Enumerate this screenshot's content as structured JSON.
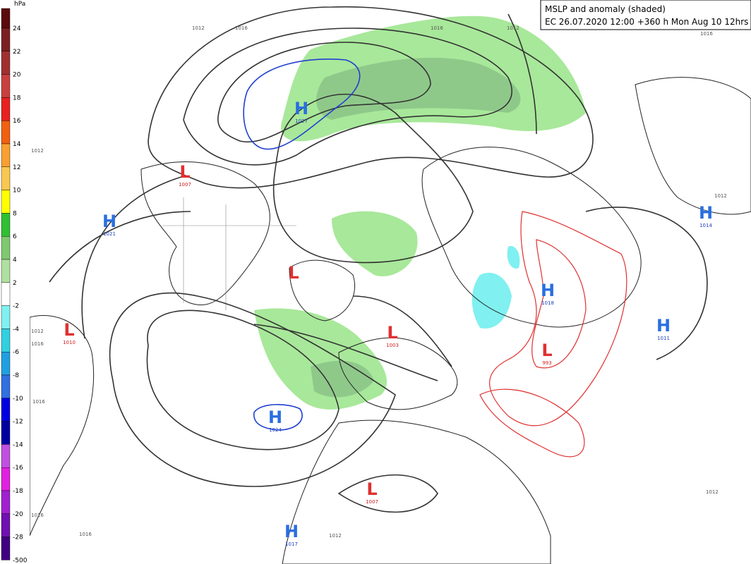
{
  "header": {
    "title": "MSLP and anomaly (shaded)",
    "subtitle": "EC 26.07.2020 12:00 +360 h Mon Aug 10 12hrs"
  },
  "colorbar": {
    "unit": "hPa",
    "levels": [
      {
        "label": "24",
        "color": "#5a0a0a"
      },
      {
        "label": "22",
        "color": "#7a2020"
      },
      {
        "label": "20",
        "color": "#a03030"
      },
      {
        "label": "18",
        "color": "#c84040"
      },
      {
        "label": "16",
        "color": "#e82020"
      },
      {
        "label": "14",
        "color": "#f06010"
      },
      {
        "label": "12",
        "color": "#f8a030"
      },
      {
        "label": "10",
        "color": "#f8c850"
      },
      {
        "label": "8",
        "color": "#ffff00"
      },
      {
        "label": "6",
        "color": "#30c030"
      },
      {
        "label": "4",
        "color": "#80c870"
      },
      {
        "label": "2",
        "color": "#b0e0a0"
      },
      {
        "label": "-2",
        "color": "#ffffff"
      },
      {
        "label": "-4",
        "color": "#80f0f0"
      },
      {
        "label": "-6",
        "color": "#30d0e0"
      },
      {
        "label": "-8",
        "color": "#20a0e0"
      },
      {
        "label": "-10",
        "color": "#3070e0"
      },
      {
        "label": "-12",
        "color": "#0000e0"
      },
      {
        "label": "-14",
        "color": "#0000a0"
      },
      {
        "label": "-16",
        "color": "#c050e0"
      },
      {
        "label": "-18",
        "color": "#e020e0"
      },
      {
        "label": "-20",
        "color": "#a020d0"
      },
      {
        "label": "-28",
        "color": "#7010b0"
      },
      {
        "label": "-500",
        "color": "#400080"
      }
    ]
  },
  "centers": [
    {
      "letter": "H",
      "value": "1027"
    },
    {
      "letter": "L",
      "value": "1007"
    },
    {
      "letter": "H",
      "value": "1021"
    },
    {
      "letter": "L"
    },
    {
      "letter": "H",
      "value": "1014"
    },
    {
      "letter": "H",
      "value": "1018"
    },
    {
      "letter": "L",
      "value": "1010"
    },
    {
      "letter": "L",
      "value": "1003"
    },
    {
      "letter": "H",
      "value": "1011"
    },
    {
      "letter": "L",
      "value": "993"
    },
    {
      "letter": "H",
      "value": "1024"
    },
    {
      "letter": "L",
      "value": "1007"
    },
    {
      "letter": "H",
      "value": "1017"
    }
  ],
  "isobar_labels": [
    "1012",
    "1016",
    "1016",
    "1012",
    "1016",
    "1012",
    "1012",
    "1012",
    "1016",
    "1016",
    "1016",
    "1016",
    "1012",
    "1012"
  ]
}
